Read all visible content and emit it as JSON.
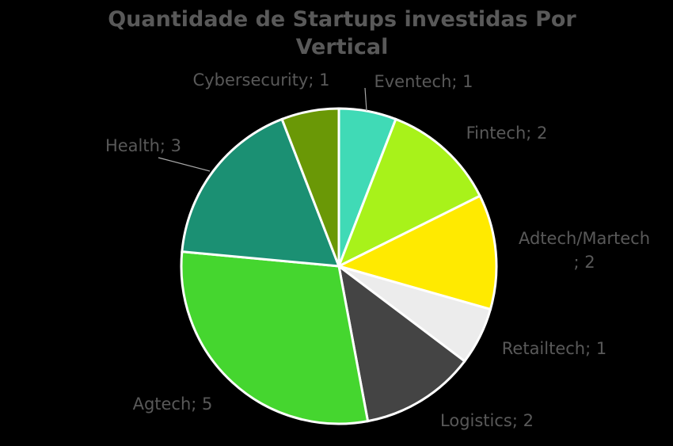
{
  "chart_data": {
    "type": "pie",
    "title_lines": [
      "Quantidade de Startups investidas Por",
      "Vertical"
    ],
    "slices": [
      {
        "label": "Eventech",
        "value": 1,
        "color": "#40dab6",
        "label_lines": [
          "Eventech;  1"
        ]
      },
      {
        "label": "Fintech",
        "value": 2,
        "color": "#a8f21a",
        "label_lines": [
          "Fintech;  2"
        ]
      },
      {
        "label": "Adtech/Martech",
        "value": 2,
        "color": "#ffea00",
        "label_lines": [
          "Adtech/Martech",
          ";  2"
        ]
      },
      {
        "label": "Retailtech",
        "value": 1,
        "color": "#ececec",
        "label_lines": [
          "Retailtech;  1"
        ]
      },
      {
        "label": "Logistics",
        "value": 2,
        "color": "#444444",
        "label_lines": [
          "Logistics;  2"
        ]
      },
      {
        "label": "Agtech",
        "value": 5,
        "color": "#45d62f",
        "label_lines": [
          "Agtech;  5"
        ]
      },
      {
        "label": "Health",
        "value": 3,
        "color": "#1b9073",
        "label_lines": [
          "Health;  3"
        ]
      },
      {
        "label": "Cybersecurity",
        "value": 1,
        "color": "#6a9806",
        "label_lines": [
          "Cybersecurity;  1"
        ]
      }
    ],
    "legend": "none"
  }
}
